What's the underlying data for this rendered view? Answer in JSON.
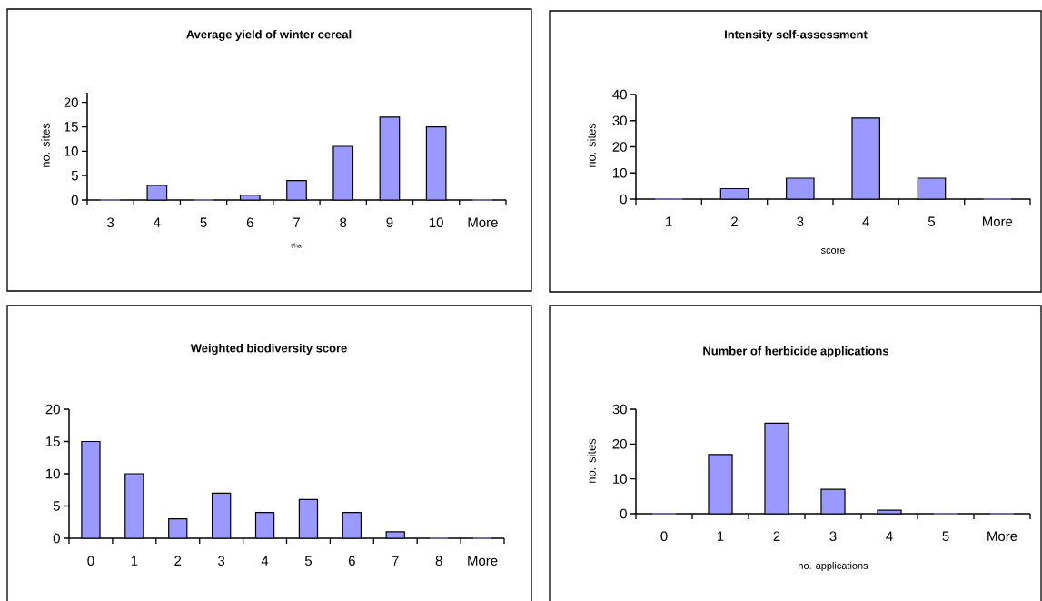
{
  "chart_data": [
    {
      "type": "bar",
      "title": "Average yield of winter cereal",
      "xlabel": "t/ha",
      "ylabel": "no. sites",
      "color": "#9999ff",
      "categories": [
        "3",
        "4",
        "5",
        "6",
        "7",
        "8",
        "9",
        "10",
        "More"
      ],
      "values": [
        0,
        3,
        0,
        1,
        4,
        11,
        17,
        15,
        0
      ],
      "ylim": [
        0,
        22
      ],
      "yticks": [
        0,
        5,
        10,
        15,
        20
      ]
    },
    {
      "type": "bar",
      "title": "Intensity self-assessment",
      "xlabel": "score",
      "ylabel": "no. sites",
      "color": "#9999ff",
      "categories": [
        "1",
        "2",
        "3",
        "4",
        "5",
        "More"
      ],
      "values": [
        0,
        4,
        8,
        31,
        8,
        0
      ],
      "ylim": [
        0,
        40
      ],
      "yticks": [
        0,
        10,
        20,
        30,
        40
      ]
    },
    {
      "type": "bar",
      "title": "Weighted biodiversity score",
      "color": "#9999ff",
      "categories": [
        "0",
        "1",
        "2",
        "3",
        "4",
        "5",
        "6",
        "7",
        "8",
        "More"
      ],
      "values": [
        15,
        10,
        3,
        7,
        4,
        6,
        4,
        1,
        0,
        0
      ],
      "ylim": [
        0,
        20
      ],
      "yticks": [
        0,
        5,
        10,
        15,
        20
      ]
    },
    {
      "type": "bar",
      "title": "Number of herbicide applications",
      "xlabel": "no. applications",
      "ylabel": "no. sites",
      "color": "#9999ff",
      "categories": [
        "0",
        "1",
        "2",
        "3",
        "4",
        "5",
        "More"
      ],
      "values": [
        0,
        17,
        26,
        7,
        1,
        0,
        0
      ],
      "ylim": [
        0,
        30
      ],
      "yticks": [
        0,
        10,
        20,
        30
      ]
    }
  ]
}
